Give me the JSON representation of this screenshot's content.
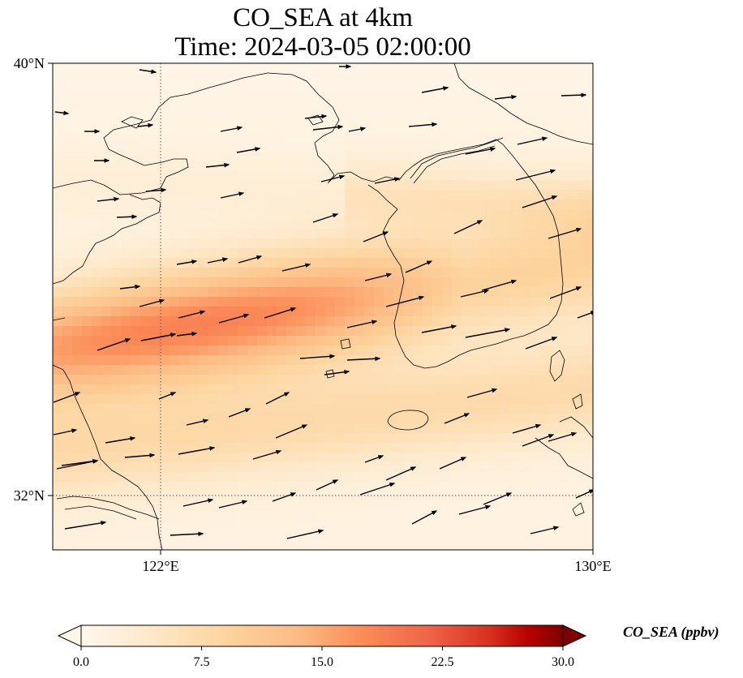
{
  "title": {
    "line1": "CO_SEA at 4km",
    "line2": "Time: 2024-03-05 02:00:00"
  },
  "axes": {
    "y_ticks": [
      "40°N",
      "32°N"
    ],
    "x_ticks": [
      "122°E",
      "130°E"
    ]
  },
  "map": {
    "lon_range": [
      120,
      130
    ],
    "lat_range": [
      31,
      40
    ],
    "gridlines": [
      {
        "lon": 122
      },
      {
        "lat": 32
      }
    ],
    "colormap": "OrRd",
    "field_peak_value": 17
  },
  "colorbar": {
    "title": "CO_SEA (ppbv)",
    "min": 0.0,
    "max": 30.0,
    "extend": "both",
    "tick_labels": [
      "0.0",
      "7.5",
      "15.0",
      "22.5",
      "30.0"
    ],
    "tick_values": [
      0,
      7.5,
      15,
      22.5,
      30
    ]
  },
  "colors": {
    "low": "#fff7ec",
    "mid": "#fdd49e",
    "high_mid": "#f4734f",
    "high": "#7f0000",
    "coastline": "#000000",
    "arrow": "#000000"
  }
}
